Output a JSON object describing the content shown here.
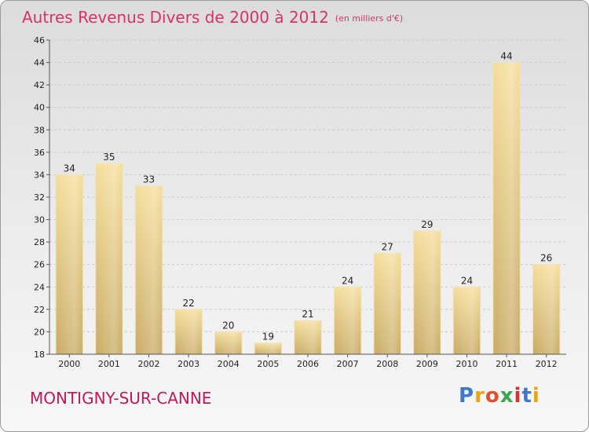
{
  "header": {
    "title": "Autres Revenus Divers de 2000 à 2012",
    "unit": "(en milliers d'€)"
  },
  "footer": {
    "commune": "MONTIGNY-SUR-CANNE",
    "logo_letters": [
      "P",
      "r",
      "o",
      "x",
      "i",
      "t",
      "i"
    ],
    "logo_colors": [
      "#3f79c9",
      "#e8a31a",
      "#e0502a",
      "#3aa54a",
      "#d8322f",
      "#3f79c9",
      "#e8a31a"
    ]
  },
  "chart_data": {
    "type": "bar",
    "title": "Autres Revenus Divers de 2000 à 2012",
    "subtitle": "(en milliers d'€)",
    "xlabel": "",
    "ylabel": "",
    "categories": [
      "2000",
      "2001",
      "2002",
      "2003",
      "2004",
      "2005",
      "2006",
      "2007",
      "2008",
      "2009",
      "2010",
      "2011",
      "2012"
    ],
    "values": [
      34,
      35,
      33,
      22,
      20,
      19,
      21,
      24,
      27,
      29,
      24,
      44,
      26
    ],
    "ylim": [
      18,
      46
    ],
    "yticks": [
      18,
      20,
      22,
      24,
      26,
      28,
      30,
      32,
      34,
      36,
      38,
      40,
      42,
      44,
      46
    ],
    "grid": true,
    "bar_color": "#e3c47c",
    "bar_highlight": "#f7e2a6"
  }
}
